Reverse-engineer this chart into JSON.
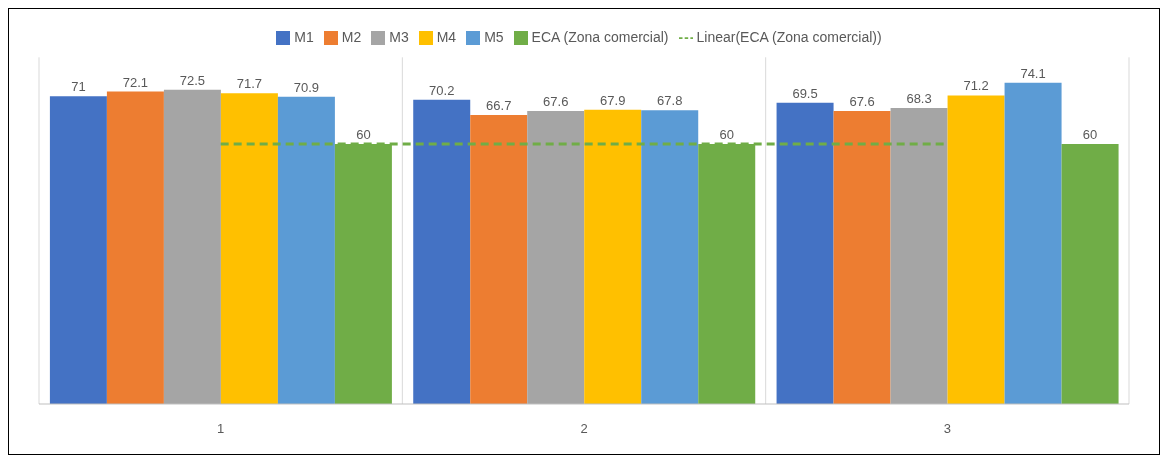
{
  "chart_data": {
    "type": "bar",
    "categories": [
      "1",
      "2",
      "3"
    ],
    "series": [
      {
        "name": "M1",
        "color": "#4472c4",
        "values": [
          71,
          70.2,
          69.5
        ],
        "value_labels": [
          "71",
          "70.2",
          "69.5"
        ]
      },
      {
        "name": "M2",
        "color": "#ed7d31",
        "values": [
          72.1,
          66.7,
          67.6
        ],
        "value_labels": [
          "72.1",
          "66.7",
          "67.6"
        ]
      },
      {
        "name": "M3",
        "color": "#a5a5a5",
        "values": [
          72.5,
          67.6,
          68.3
        ],
        "value_labels": [
          "72.5",
          "67.6",
          "68.3"
        ]
      },
      {
        "name": "M4",
        "color": "#ffc000",
        "values": [
          71.7,
          67.9,
          71.2
        ],
        "value_labels": [
          "71.7",
          "67.9",
          "71.2"
        ]
      },
      {
        "name": "M5",
        "color": "#5b9bd5",
        "values": [
          70.9,
          67.8,
          74.1
        ],
        "value_labels": [
          "70.9",
          "67.8",
          "74.1"
        ]
      },
      {
        "name": "ECA (Zona comercial)",
        "color": "#70ad47",
        "values": [
          60,
          60,
          60
        ],
        "value_labels": [
          "60",
          "60",
          "60"
        ]
      },
      {
        "name": "Linear(ECA (Zona comercial))",
        "type": "line",
        "color": "#70ad47",
        "line_style": "dashed",
        "values": [
          60,
          60,
          60
        ]
      }
    ],
    "grid": "x",
    "legend": "top"
  }
}
